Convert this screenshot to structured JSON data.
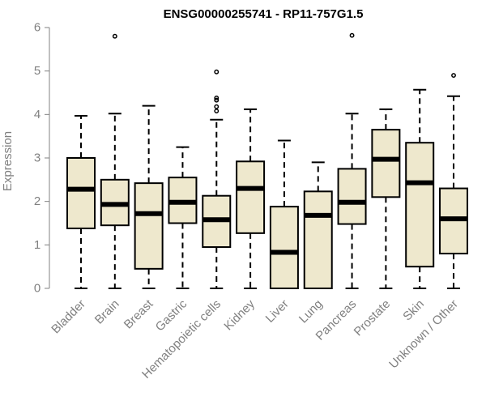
{
  "chart_data": {
    "type": "boxplot",
    "title": "ENSG00000255741 - RP11-757G1.5",
    "ylabel": "Expression",
    "xlabel": "",
    "ylim": [
      0,
      6
    ],
    "yticks": [
      0,
      1,
      2,
      3,
      4,
      5,
      6
    ],
    "grid": false,
    "box_color": "#EEE8CD",
    "categories": [
      "Bladder",
      "Brain",
      "Breast",
      "Gastric",
      "Hematopoietic cells",
      "Kidney",
      "Liver",
      "Lung",
      "Pancreas",
      "Prostate",
      "Skin",
      "Unknown / Other"
    ],
    "boxes": [
      {
        "min": 0,
        "q1": 1.38,
        "median": 2.28,
        "q3": 3.0,
        "max": 3.97,
        "outliers": []
      },
      {
        "min": 0,
        "q1": 1.45,
        "median": 1.93,
        "q3": 2.5,
        "max": 4.02,
        "outliers": [
          5.8
        ]
      },
      {
        "min": 0,
        "q1": 0.45,
        "median": 1.72,
        "q3": 2.42,
        "max": 4.2,
        "outliers": []
      },
      {
        "min": 0,
        "q1": 1.5,
        "median": 1.98,
        "q3": 2.55,
        "max": 3.25,
        "outliers": []
      },
      {
        "min": 0,
        "q1": 0.95,
        "median": 1.58,
        "q3": 2.13,
        "max": 3.88,
        "outliers": [
          4.08,
          4.18,
          4.33,
          4.38,
          4.98
        ]
      },
      {
        "min": 0,
        "q1": 1.27,
        "median": 2.3,
        "q3": 2.92,
        "max": 4.12,
        "outliers": []
      },
      {
        "min": 0,
        "q1": 0,
        "median": 0.83,
        "q3": 1.88,
        "max": 3.4,
        "outliers": []
      },
      {
        "min": 0,
        "q1": 0,
        "median": 1.68,
        "q3": 2.23,
        "max": 2.9,
        "outliers": []
      },
      {
        "min": 0,
        "q1": 1.48,
        "median": 1.98,
        "q3": 2.75,
        "max": 4.02,
        "outliers": [
          5.82
        ]
      },
      {
        "min": 0,
        "q1": 2.1,
        "median": 2.97,
        "q3": 3.65,
        "max": 4.12,
        "outliers": []
      },
      {
        "min": 0,
        "q1": 0.5,
        "median": 2.43,
        "q3": 3.35,
        "max": 4.57,
        "outliers": []
      },
      {
        "min": 0,
        "q1": 0.8,
        "median": 1.6,
        "q3": 2.3,
        "max": 4.42,
        "outliers": [
          4.9
        ]
      }
    ]
  }
}
